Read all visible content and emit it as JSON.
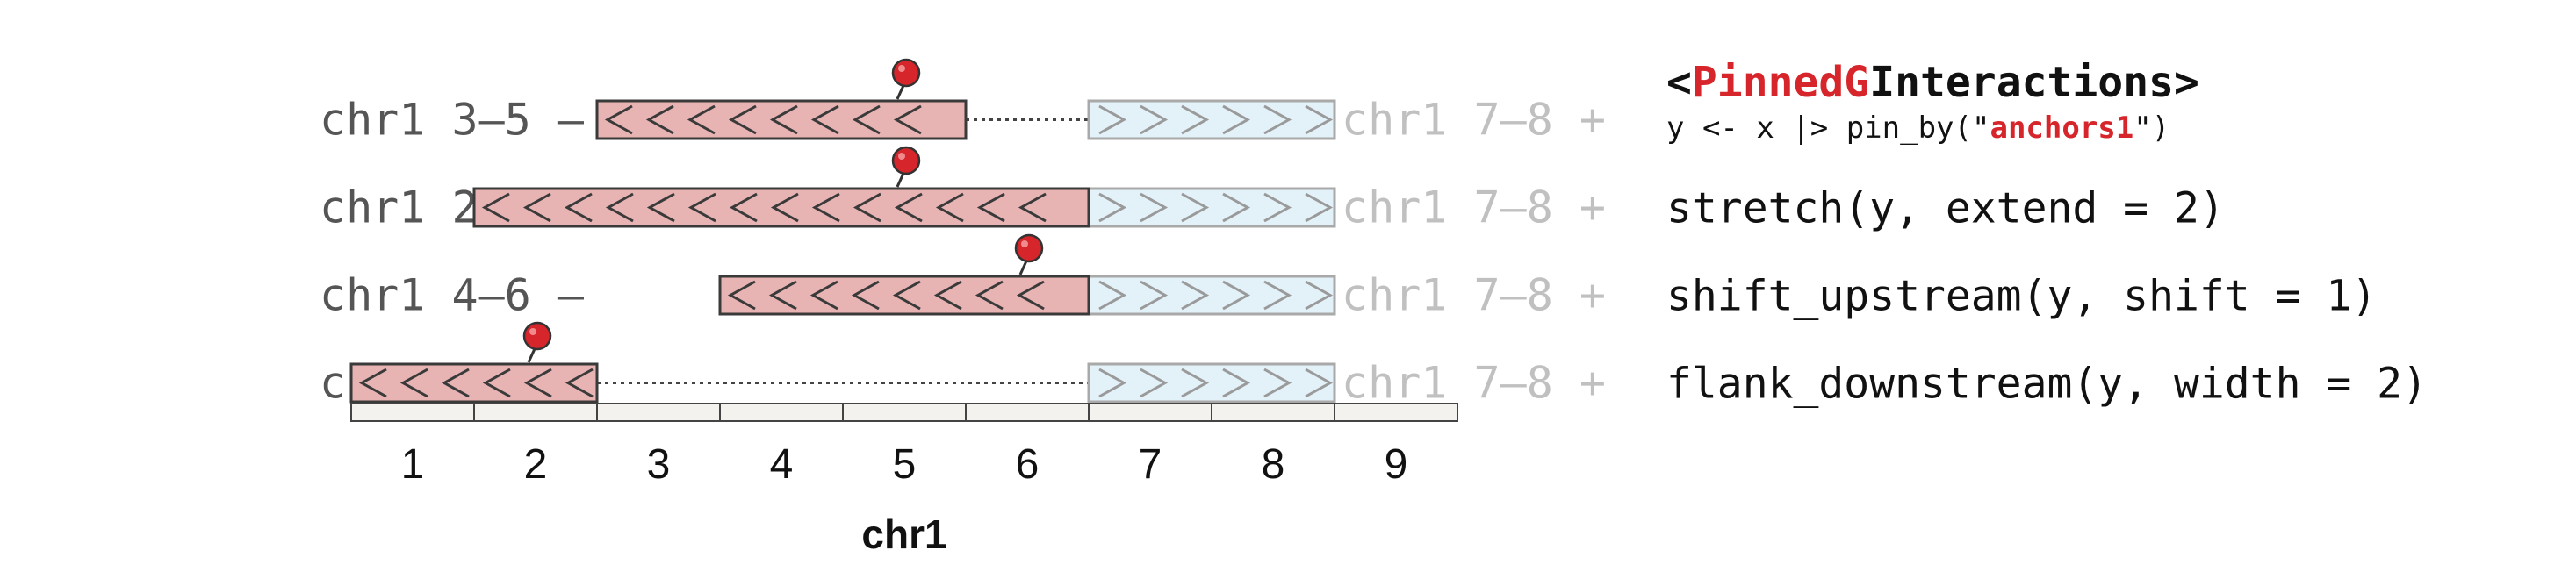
{
  "rows": [
    {
      "label": "chr1 3–5 –",
      "range": [
        3,
        5
      ],
      "pin": 5,
      "mate_label": "chr1 7–8 +",
      "mate_range": [
        7,
        8
      ],
      "code": [
        {
          "text": "<",
          "style": "bold"
        },
        {
          "text": "PinnedG",
          "style": "bold-accent"
        },
        {
          "text": "Interactions>",
          "style": "bold"
        }
      ],
      "code_sub": [
        {
          "text": "y <- x |> pin_by(\"",
          "style": "plain"
        },
        {
          "text": "anchors1",
          "style": "bold-accent"
        },
        {
          "text": "\")",
          "style": "plain"
        }
      ]
    },
    {
      "label": "chr1 2–6 –",
      "range": [
        2,
        6
      ],
      "pin": 5,
      "mate_label": "chr1 7–8 +",
      "mate_range": [
        7,
        8
      ],
      "code": [
        {
          "text": "stretch(y, extend = 2)",
          "style": "plain"
        }
      ]
    },
    {
      "label": "chr1 4–6 –",
      "range": [
        4,
        6
      ],
      "pin": 6,
      "mate_label": "chr1 7–8 +",
      "mate_range": [
        7,
        8
      ],
      "code": [
        {
          "text": "shift_upstream(y, shift = 1)",
          "style": "plain"
        }
      ]
    },
    {
      "label": "chr1 1–2 –",
      "range": [
        1,
        2
      ],
      "pin": 2,
      "mate_label": "chr1 7–8 +",
      "mate_range": [
        7,
        8
      ],
      "code": [
        {
          "text": "flank_downstream(y, width = 2)",
          "style": "plain"
        }
      ]
    }
  ],
  "axis": {
    "ticks": [
      "1",
      "2",
      "3",
      "4",
      "5",
      "6",
      "7",
      "8",
      "9"
    ],
    "title": "chr1"
  },
  "colors": {
    "anchor_fill": "#e8b3b3",
    "anchor_stroke": "#3a3a3a",
    "mate_fill": "#e3f1f9",
    "mate_stroke": "#a9a9a9",
    "label_text": "#555555",
    "mate_text": "#c0c0c0",
    "accent": "#d7262b",
    "pin": "#d7262b",
    "axis_fill": "#f3f2ef"
  }
}
